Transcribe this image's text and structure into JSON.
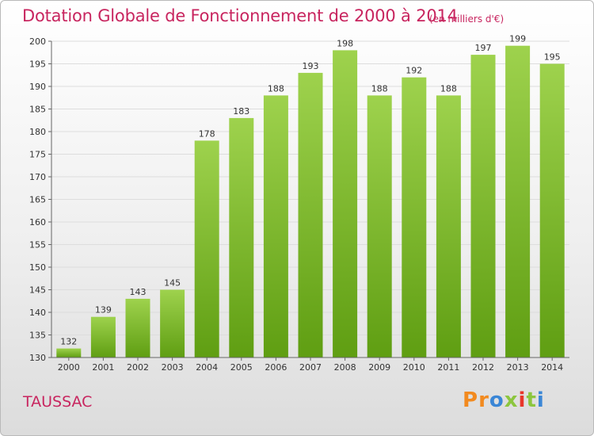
{
  "header": {
    "title": "Dotation Globale de Fonctionnement de 2000 à 2014",
    "unit": "(en milliers d'€)"
  },
  "commune": "TAUSSAC",
  "logo": {
    "text": "Proxiti",
    "letters": [
      "P",
      "r",
      "o",
      "x",
      "i",
      "t",
      "i"
    ],
    "colors": [
      "#f28a1f",
      "#f28a1f",
      "#3a86d6",
      "#8cc63e",
      "#e8362a",
      "#8cc63e",
      "#3a86d6"
    ]
  },
  "chart_data": {
    "type": "bar",
    "title": "Dotation Globale de Fonctionnement de 2000 à 2014",
    "xlabel": "",
    "ylabel": "",
    "categories": [
      "2000",
      "2001",
      "2002",
      "2003",
      "2004",
      "2005",
      "2006",
      "2007",
      "2008",
      "2009",
      "2010",
      "2011",
      "2012",
      "2013",
      "2014"
    ],
    "values": [
      132,
      139,
      143,
      145,
      178,
      183,
      188,
      193,
      198,
      188,
      192,
      188,
      197,
      199,
      195
    ],
    "ylim": [
      130,
      200
    ],
    "yticks": [
      130,
      135,
      140,
      145,
      150,
      155,
      160,
      165,
      170,
      175,
      180,
      185,
      190,
      195,
      200
    ],
    "grid": true,
    "colors": {
      "bar_light": "#9ed24d",
      "bar_dark": "#5f9e12",
      "grid": "#dddddd"
    }
  }
}
